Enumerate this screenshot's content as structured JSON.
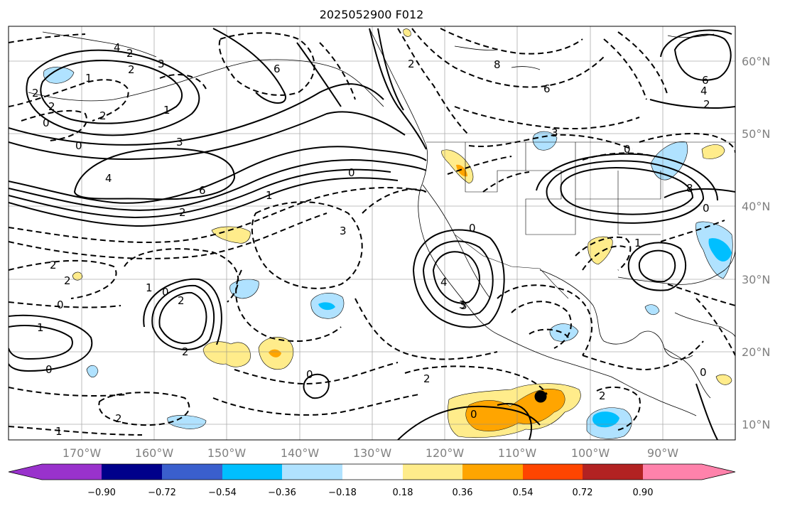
{
  "title": "2025052900 F012",
  "map": {
    "lon_range": [
      -180,
      -80
    ],
    "lat_range": [
      8,
      65
    ],
    "lon_labels": [
      "170°W",
      "160°W",
      "150°W",
      "140°W",
      "130°W",
      "120°W",
      "110°W",
      "100°W",
      "90°W"
    ],
    "lat_labels": [
      "60°N",
      "50°N",
      "40°N",
      "30°N",
      "20°N",
      "10°N"
    ],
    "grid": true,
    "marker": "black-dot"
  },
  "colorbar": {
    "ticks": [
      "−0.90",
      "−0.72",
      "−0.54",
      "−0.36",
      "−0.18",
      "0.18",
      "0.36",
      "0.54",
      "0.72",
      "0.90"
    ],
    "colors": [
      "#9932cc",
      "#00008b",
      "#3a5fcd",
      "#00bfff",
      "#b0e2ff",
      "#ffffff",
      "#ffec8b",
      "#ffa500",
      "#ff4500",
      "#b22222",
      "#ff82ab"
    ],
    "extend": "both"
  },
  "contour_labels": [
    "2",
    "4",
    "3",
    "2",
    "1",
    "2",
    "0",
    "2",
    "3",
    "4",
    "6",
    "2",
    "0",
    "6",
    "1",
    "2",
    "0",
    "3",
    "6",
    "8",
    "2",
    "0",
    "3",
    "8",
    "1",
    "0",
    "2",
    "2",
    "1",
    "0",
    "3",
    "2",
    "2",
    "1",
    "0",
    "1",
    "0",
    "2",
    "1",
    "0",
    "2",
    "4",
    "3",
    "0",
    "0",
    "2",
    "0",
    "2",
    "6",
    "4"
  ]
}
